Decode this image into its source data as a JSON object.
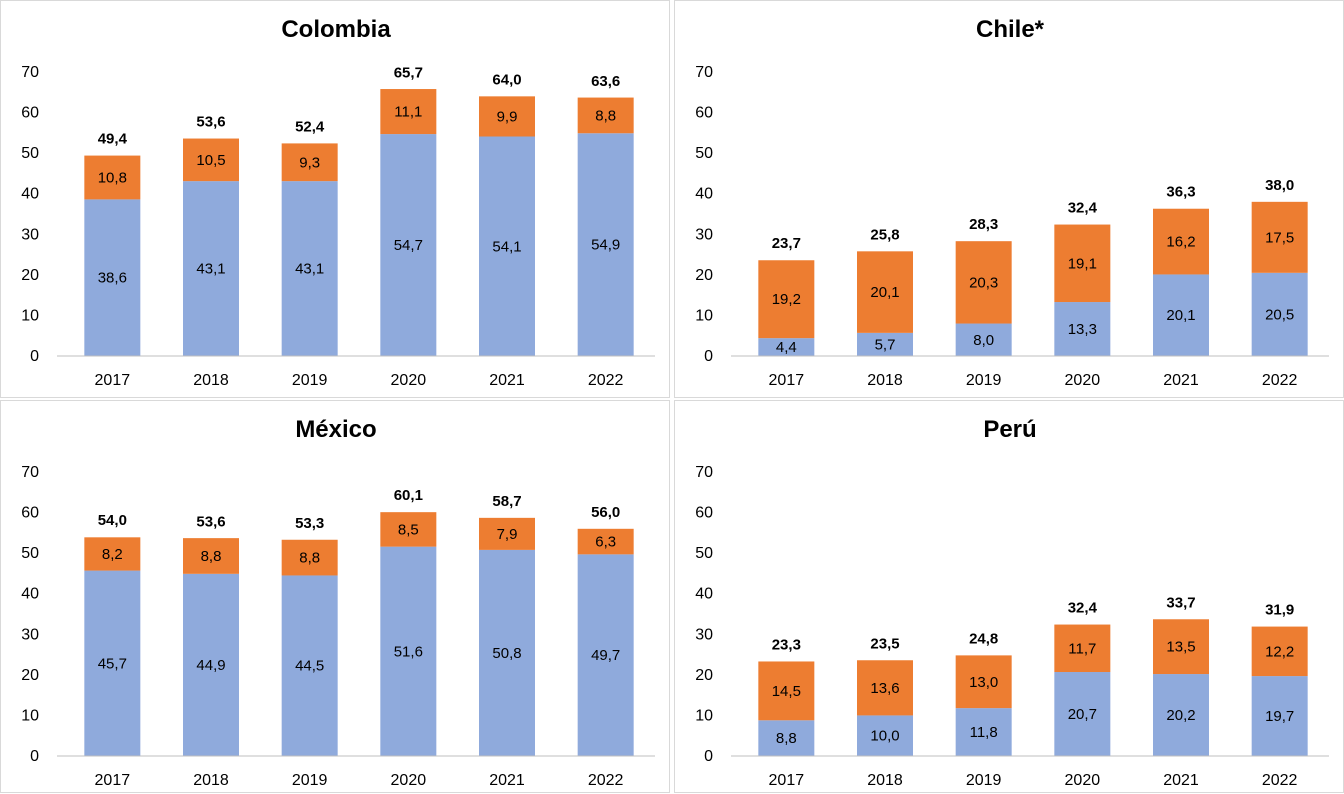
{
  "colors": {
    "bottom": "#8faadc",
    "top": "#ed7d31",
    "axis": "#bfbfbf"
  },
  "chart_data": [
    {
      "type": "bar",
      "stacked": true,
      "title": "Colombia",
      "categories": [
        "2017",
        "2018",
        "2019",
        "2020",
        "2021",
        "2022"
      ],
      "ylim": [
        0,
        70
      ],
      "yticks": [
        0,
        10,
        20,
        30,
        40,
        50,
        60,
        70
      ],
      "ytick_labels": [
        "0",
        "10",
        "20",
        "30",
        "40",
        "50",
        "60",
        "70"
      ],
      "grid": false,
      "series": [
        {
          "values": [
            38.6,
            43.1,
            43.1,
            54.7,
            54.1,
            54.9
          ],
          "labels": [
            "38,6",
            "43,1",
            "43,1",
            "54,7",
            "54,1",
            "54,9"
          ]
        },
        {
          "values": [
            10.8,
            10.5,
            9.3,
            11.1,
            9.9,
            8.8
          ],
          "labels": [
            "10,8",
            "10,5",
            "9,3",
            "11,1",
            "9,9",
            "8,8"
          ]
        }
      ],
      "totals": [
        49.4,
        53.6,
        52.4,
        65.7,
        64.0,
        63.6
      ],
      "total_labels": [
        "49,4",
        "53,6",
        "52,4",
        "65,7",
        "64,0",
        "63,6"
      ]
    },
    {
      "type": "bar",
      "stacked": true,
      "title": "Chile*",
      "categories": [
        "2017",
        "2018",
        "2019",
        "2020",
        "2021",
        "2022"
      ],
      "ylim": [
        0,
        70
      ],
      "yticks": [
        0,
        10,
        20,
        30,
        40,
        50,
        60,
        70
      ],
      "ytick_labels": [
        "0",
        "10",
        "20",
        "30",
        "40",
        "50",
        "60",
        "70"
      ],
      "grid": false,
      "series": [
        {
          "values": [
            4.4,
            5.7,
            8.0,
            13.3,
            20.1,
            20.5
          ],
          "labels": [
            "4,4",
            "5,7",
            "8,0",
            "13,3",
            "20,1",
            "20,5"
          ]
        },
        {
          "values": [
            19.2,
            20.1,
            20.3,
            19.1,
            16.2,
            17.5
          ],
          "labels": [
            "19,2",
            "20,1",
            "20,3",
            "19,1",
            "16,2",
            "17,5"
          ]
        }
      ],
      "totals": [
        23.7,
        25.8,
        28.3,
        32.4,
        36.3,
        38.0
      ],
      "total_labels": [
        "23,7",
        "25,8",
        "28,3",
        "32,4",
        "36,3",
        "38,0"
      ]
    },
    {
      "type": "bar",
      "stacked": true,
      "title": "México",
      "categories": [
        "2017",
        "2018",
        "2019",
        "2020",
        "2021",
        "2022"
      ],
      "ylim": [
        0,
        70
      ],
      "yticks": [
        0,
        10,
        20,
        30,
        40,
        50,
        60,
        70
      ],
      "ytick_labels": [
        "0",
        "10",
        "20",
        "30",
        "40",
        "50",
        "60",
        "70"
      ],
      "grid": false,
      "series": [
        {
          "values": [
            45.7,
            44.9,
            44.5,
            51.6,
            50.8,
            49.7
          ],
          "labels": [
            "45,7",
            "44,9",
            "44,5",
            "51,6",
            "50,8",
            "49,7"
          ]
        },
        {
          "values": [
            8.2,
            8.8,
            8.8,
            8.5,
            7.9,
            6.3
          ],
          "labels": [
            "8,2",
            "8,8",
            "8,8",
            "8,5",
            "7,9",
            "6,3"
          ]
        }
      ],
      "totals": [
        54.0,
        53.6,
        53.3,
        60.1,
        58.7,
        56.0
      ],
      "total_labels": [
        "54,0",
        "53,6",
        "53,3",
        "60,1",
        "58,7",
        "56,0"
      ]
    },
    {
      "type": "bar",
      "stacked": true,
      "title": "Perú",
      "categories": [
        "2017",
        "2018",
        "2019",
        "2020",
        "2021",
        "2022"
      ],
      "ylim": [
        0,
        70
      ],
      "yticks": [
        0,
        10,
        20,
        30,
        40,
        50,
        60,
        70
      ],
      "ytick_labels": [
        "0",
        "10",
        "20",
        "30",
        "40",
        "50",
        "60",
        "70"
      ],
      "grid": false,
      "series": [
        {
          "values": [
            8.8,
            10.0,
            11.8,
            20.7,
            20.2,
            19.7
          ],
          "labels": [
            "8,8",
            "10,0",
            "11,8",
            "20,7",
            "20,2",
            "19,7"
          ]
        },
        {
          "values": [
            14.5,
            13.6,
            13.0,
            11.7,
            13.5,
            12.2
          ],
          "labels": [
            "14,5",
            "13,6",
            "13,0",
            "11,7",
            "13,5",
            "12,2"
          ]
        }
      ],
      "totals": [
        23.3,
        23.5,
        24.8,
        32.4,
        33.7,
        31.9
      ],
      "total_labels": [
        "23,3",
        "23,5",
        "24,8",
        "32,4",
        "33,7",
        "31,9"
      ]
    }
  ]
}
